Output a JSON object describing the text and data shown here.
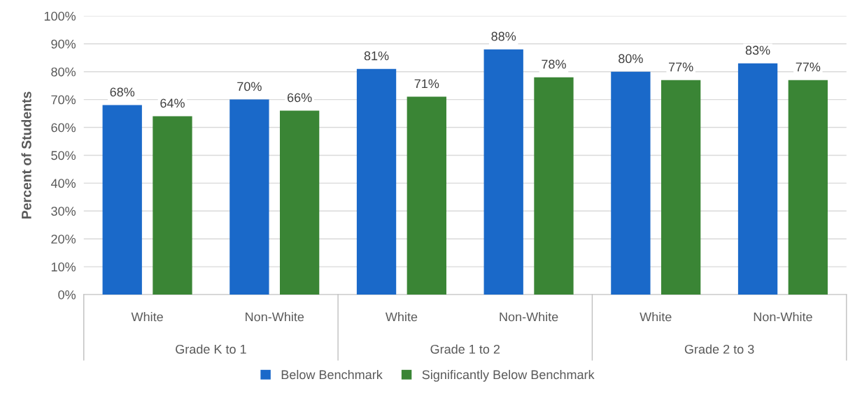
{
  "chart_data": {
    "type": "bar",
    "ylabel": "Percent of Students",
    "categories": [
      "White",
      "Non-White",
      "White",
      "Non-White",
      "White",
      "Non-White"
    ],
    "annotations": [
      "Grade K to 1",
      "Grade 1 to 2",
      "Grade 2 to 3"
    ],
    "series": [
      {
        "name": "Below Benchmark",
        "color": "#1a69c9",
        "values": [
          68,
          70,
          81,
          88,
          80,
          83
        ],
        "value_labels": [
          "68%",
          "70%",
          "81%",
          "88%",
          "80%",
          "83%"
        ]
      },
      {
        "name": "Significantly Below Benchmark",
        "color": "#3a8535",
        "values": [
          64,
          66,
          71,
          78,
          77,
          77
        ],
        "value_labels": [
          "64%",
          "66%",
          "71%",
          "78%",
          "77%",
          "77%"
        ]
      }
    ],
    "ylim": [
      0,
      100
    ],
    "yticks": [
      {
        "value": 0,
        "label": "0%"
      },
      {
        "value": 10,
        "label": "10%"
      },
      {
        "value": 20,
        "label": "20%"
      },
      {
        "value": 30,
        "label": "30%"
      },
      {
        "value": 40,
        "label": "40%"
      },
      {
        "value": 50,
        "label": "50%"
      },
      {
        "value": 60,
        "label": "60%"
      },
      {
        "value": 70,
        "label": "70%"
      },
      {
        "value": 80,
        "label": "80%"
      },
      {
        "value": 90,
        "label": "90%"
      },
      {
        "value": 100,
        "label": "100%"
      }
    ],
    "grid": "y",
    "legend": "bottom"
  }
}
